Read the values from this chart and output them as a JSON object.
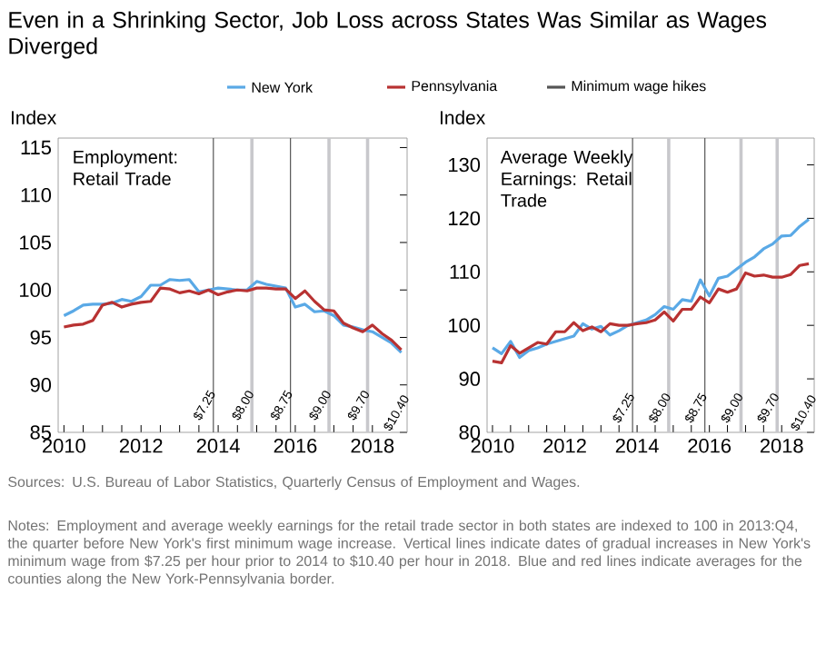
{
  "chart_data": [
    {
      "type": "other",
      "title": "Even in a Shrinking Sector, Job Loss across States Was Similar as Wages Diverged"
    },
    {
      "type": "line",
      "ylabel": "Index",
      "legend": "top",
      "x": [
        2010.0,
        2010.25,
        2010.5,
        2010.75,
        2011.0,
        2011.25,
        2011.5,
        2011.75,
        2012.0,
        2012.25,
        2012.5,
        2012.75,
        2013.0,
        2013.25,
        2013.5,
        2013.75,
        2014.0,
        2014.25,
        2014.5,
        2014.75,
        2015.0,
        2015.25,
        2015.5,
        2015.75,
        2016.0,
        2016.25,
        2016.5,
        2016.75,
        2017.0,
        2017.25,
        2017.5,
        2017.75,
        2018.0,
        2018.25,
        2018.5,
        2018.75
      ],
      "series": [
        {
          "name": "New York",
          "color": "#5aa9e6",
          "values": [
            97.3,
            97.8,
            98.4,
            98.5,
            98.5,
            98.6,
            99.0,
            98.8,
            99.3,
            100.5,
            100.5,
            101.1,
            101.0,
            101.1,
            99.8,
            100.0,
            100.2,
            100.1,
            100.0,
            100.0,
            100.9,
            100.6,
            100.4,
            100.2,
            98.2,
            98.5,
            97.7,
            97.8,
            97.3,
            96.3,
            96.1,
            95.8,
            95.6,
            95.0,
            94.4,
            93.4
          ]
        },
        {
          "name": "Pennsylvania",
          "color": "#b83232",
          "values": [
            96.1,
            96.3,
            96.4,
            96.8,
            98.4,
            98.7,
            98.2,
            98.5,
            98.7,
            98.8,
            100.2,
            100.1,
            99.7,
            99.9,
            99.6,
            100.0,
            99.5,
            99.8,
            100.0,
            99.9,
            100.2,
            100.2,
            100.1,
            100.1,
            99.1,
            99.9,
            98.8,
            97.9,
            97.8,
            96.5,
            96.0,
            95.6,
            96.3,
            95.4,
            94.7,
            93.7
          ]
        }
      ],
      "xlim": [
        2009.85,
        2018.9
      ],
      "xticks": [
        2010,
        2012,
        2014,
        2016,
        2018
      ],
      "ylim": [
        85,
        116
      ],
      "yticks": [
        85,
        90,
        95,
        100,
        105,
        110,
        115
      ],
      "ref_lines": [
        {
          "axis": "x",
          "value": 2013.875,
          "color": "#555555",
          "label": "Minimum wage hikes"
        },
        {
          "axis": "x",
          "value": 2014.875,
          "color": "#c8c8cc"
        },
        {
          "axis": "x",
          "value": 2015.875,
          "color": "#555555"
        },
        {
          "axis": "x",
          "value": 2016.875,
          "color": "#c8c8cc"
        },
        {
          "axis": "x",
          "value": 2017.875,
          "color": "#c8c8cc"
        }
      ],
      "annotations": [
        "Employment: Retail Trade",
        {
          "text": "$7.25",
          "x": 2013.875,
          "y": 89.5
        },
        {
          "text": "$8.00",
          "x": 2014.875,
          "y": 89.5
        },
        {
          "text": "$8.75",
          "x": 2015.875,
          "y": 89.5
        },
        {
          "text": "$9.00",
          "x": 2016.875,
          "y": 89.5
        },
        {
          "text": "$9.70",
          "x": 2017.875,
          "y": 89.5
        },
        "$10.40"
      ]
    },
    {
      "type": "line",
      "ylabel": "Index",
      "x": [
        2010.0,
        2010.25,
        2010.5,
        2010.75,
        2011.0,
        2011.25,
        2011.5,
        2011.75,
        2012.0,
        2012.25,
        2012.5,
        2012.75,
        2013.0,
        2013.25,
        2013.5,
        2013.75,
        2014.0,
        2014.25,
        2014.5,
        2014.75,
        2015.0,
        2015.25,
        2015.5,
        2015.75,
        2016.0,
        2016.25,
        2016.5,
        2016.75,
        2017.0,
        2017.25,
        2017.5,
        2017.75,
        2018.0,
        2018.25,
        2018.5,
        2018.75
      ],
      "series": [
        {
          "color": "#5aa9e6",
          "values": [
            95.8,
            94.7,
            97.0,
            94.0,
            95.3,
            95.8,
            96.5,
            97.0,
            97.5,
            98.0,
            100.3,
            99.3,
            99.8,
            98.2,
            99.0,
            100.0,
            100.5,
            101.0,
            102.0,
            103.5,
            103.0,
            104.8,
            104.5,
            108.5,
            105.5,
            108.8,
            109.2,
            110.5,
            111.8,
            112.8,
            114.3,
            115.2,
            116.7,
            116.8,
            118.5,
            119.8
          ]
        },
        {
          "color": "#b83232",
          "values": [
            93.3,
            93.0,
            96.2,
            94.8,
            95.8,
            96.8,
            96.5,
            98.8,
            98.8,
            100.5,
            99.0,
            99.7,
            98.8,
            100.3,
            100.0,
            100.0,
            100.3,
            100.5,
            101.0,
            102.5,
            100.8,
            103.0,
            103.0,
            105.3,
            104.2,
            106.8,
            106.2,
            106.8,
            109.8,
            109.2,
            109.4,
            109.0,
            109.0,
            109.5,
            111.2,
            111.5
          ]
        }
      ],
      "xlim": [
        2009.85,
        2018.9
      ],
      "xticks": [
        2010,
        2012,
        2014,
        2016,
        2018
      ],
      "ylim": [
        80,
        135
      ],
      "yticks": [
        80,
        90,
        100,
        110,
        120,
        130
      ],
      "ref_lines": [
        {
          "axis": "x",
          "value": 2013.875,
          "color": "#555555"
        },
        {
          "axis": "x",
          "value": 2014.875,
          "color": "#c8c8cc"
        },
        {
          "axis": "x",
          "value": 2015.875,
          "color": "#555555"
        },
        {
          "axis": "x",
          "value": 2016.875,
          "color": "#c8c8cc"
        },
        {
          "axis": "x",
          "value": 2017.875,
          "color": "#c8c8cc"
        }
      ],
      "annotations": [
        "Average Weekly Earnings: Retail Trade",
        {
          "text": "$7.25",
          "x": 2013.875,
          "y": 87.5
        },
        {
          "text": "$8.00",
          "x": 2014.875,
          "y": 87.5
        },
        {
          "text": "$8.75",
          "x": 2015.875,
          "y": 87.5
        },
        {
          "text": "$9.00",
          "x": 2016.875,
          "y": 87.5
        },
        {
          "text": "$9.70",
          "x": 2017.875,
          "y": 87.5
        },
        "$10.40"
      ]
    },
    {
      "type": "other",
      "annotations": [
        "Sources: U.S. Bureau of Labor Statistics, Quarterly Census of Employment and Wages.",
        "Notes: Employment and average weekly earnings for the retail trade sector in both states are indexed to 100 in 2013:Q4, the quarter before New York's first minimum wage increase. Vertical lines indicate dates of gradual increases in New York's minimum wage from $7.25 per hour prior to 2014 to $10.40 per hour in 2018. Blue and red lines indicate averages for the counties along the New York-Pennsylvania border."
      ]
    }
  ]
}
